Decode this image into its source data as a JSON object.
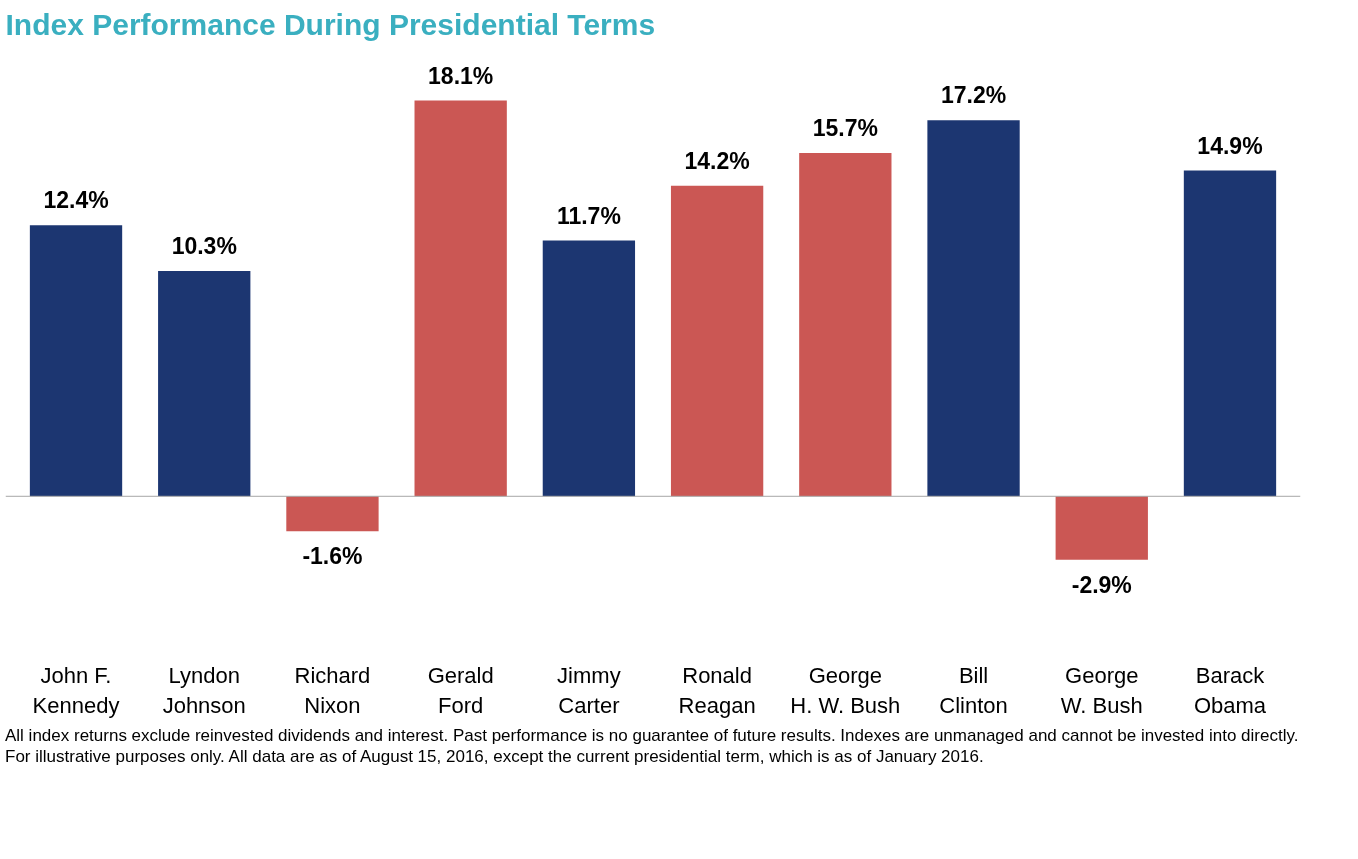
{
  "chart_data": {
    "type": "bar",
    "title": "Index Performance During Presidential Terms",
    "categories": [
      "John F.\nKennedy",
      "Lyndon\nJohnson",
      "Richard\nNixon",
      "Gerald\nFord",
      "Jimmy\nCarter",
      "Ronald\nReagan",
      "George\nH. W. Bush",
      "Bill\nClinton",
      "George\nW. Bush",
      "Barack\nObama"
    ],
    "values": [
      12.4,
      10.3,
      -1.6,
      18.1,
      11.7,
      14.2,
      15.7,
      17.2,
      -2.9,
      14.9
    ],
    "colors": [
      "#1c3671",
      "#1c3671",
      "#cb5754",
      "#cb5754",
      "#1c3671",
      "#cb5754",
      "#cb5754",
      "#1c3671",
      "#cb5754",
      "#1c3671"
    ],
    "value_labels": [
      "12.4%",
      "10.3%",
      "-1.6%",
      "18.1%",
      "11.7%",
      "14.2%",
      "15.7%",
      "17.2%",
      "-2.9%",
      "14.9%"
    ],
    "annotations": [
      "All index returns exclude reinvested dividends and interest. Past performance is no guarantee of future results. Indexes are unmanaged and cannot be invested into directly. For illustrative purposes only. All data are as of August 15, 2016, except the current presidential term, which is as of January 2016."
    ],
    "grid": false
  }
}
